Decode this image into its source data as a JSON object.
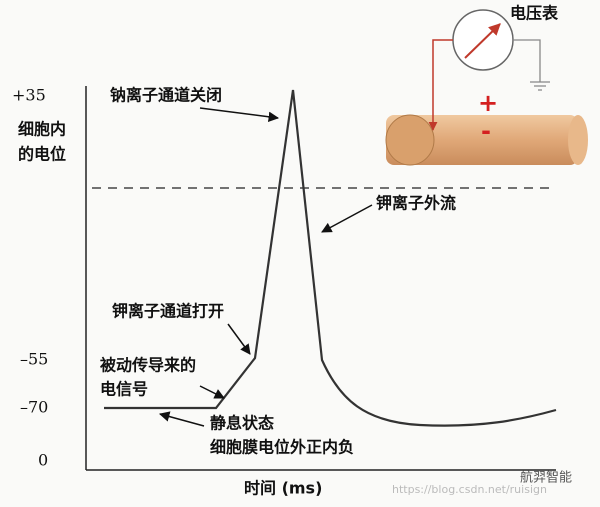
{
  "axis": {
    "y_label": [
      "细胞内",
      "的电位"
    ],
    "ticks": [
      "+35",
      "–55",
      "–70",
      "0"
    ],
    "x_label": "时间 (ms)"
  },
  "annotations": {
    "na_close": "钠离子通道关闭",
    "k_out": "钾离子外流",
    "k_open": "钾离子通道打开",
    "passive": [
      "被动传导来的",
      "电信号"
    ],
    "rest": [
      "静息状态",
      "细胞膜电位外正内负"
    ]
  },
  "meter": {
    "title": "电压表",
    "plus": "+",
    "minus": "-"
  },
  "watermark": {
    "url": "https://blog.csdn.net/ruisign",
    "brand": "航羿智能"
  }
}
